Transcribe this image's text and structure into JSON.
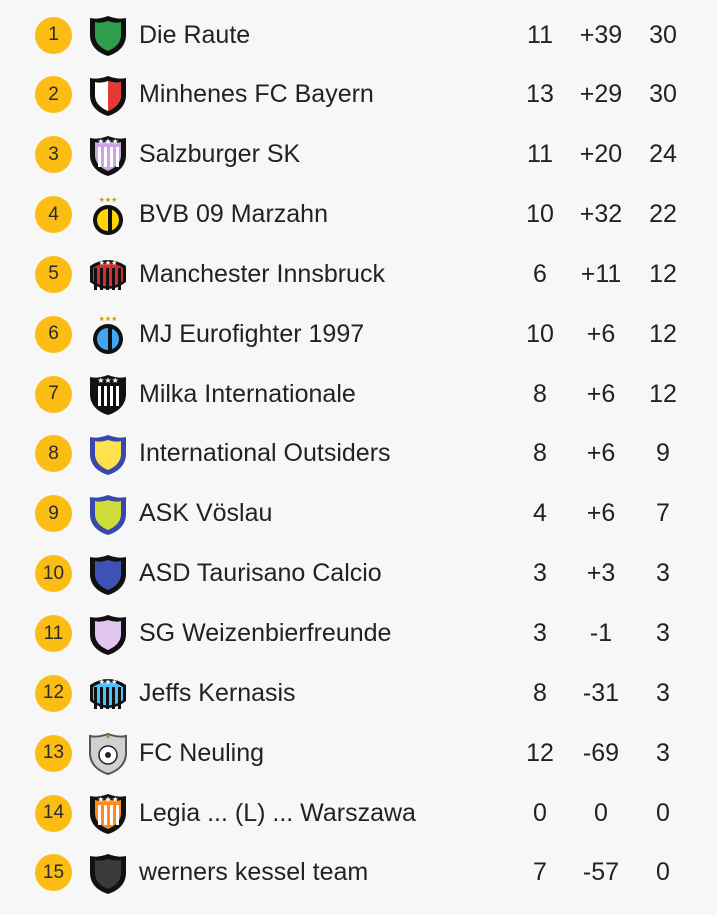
{
  "standings": [
    {
      "rank": "1",
      "crest": "shield-green-white-icon",
      "name": "Die Raute",
      "played": "11",
      "diff": "+39",
      "points": "30",
      "colors": [
        "#2e9e4a",
        "#ffffff"
      ]
    },
    {
      "rank": "2",
      "crest": "shield-red-white-icon",
      "name": "Minhenes FC Bayern",
      "played": "13",
      "diff": "+29",
      "points": "30",
      "colors": [
        "#e53935",
        "#ffffff"
      ]
    },
    {
      "rank": "3",
      "crest": "shield-lilac-stripes-icon",
      "name": "Salzburger SK",
      "played": "11",
      "diff": "+20",
      "points": "24",
      "colors": [
        "#c9a6e0",
        "#ffffff"
      ]
    },
    {
      "rank": "4",
      "crest": "round-yellow-black-icon",
      "name": "BVB 09 Marzahn",
      "played": "10",
      "diff": "+32",
      "points": "22",
      "colors": [
        "#ffd600",
        "#111111"
      ]
    },
    {
      "rank": "5",
      "crest": "badge-red-black-stripes-icon",
      "name": "Manchester Innsbruck",
      "played": "6",
      "diff": "+11",
      "points": "12",
      "colors": [
        "#d32f2f",
        "#111111"
      ]
    },
    {
      "rank": "6",
      "crest": "round-blue-black-icon",
      "name": "MJ Eurofighter 1997",
      "played": "10",
      "diff": "+6",
      "points": "12",
      "colors": [
        "#42a5f5",
        "#111111"
      ]
    },
    {
      "rank": "7",
      "crest": "shield-black-white-stripes-icon",
      "name": "Milka Internationale",
      "played": "8",
      "diff": "+6",
      "points": "12",
      "colors": [
        "#111111",
        "#ffffff"
      ]
    },
    {
      "rank": "8",
      "crest": "shield-yellow-blue-icon",
      "name": "International Outsiders",
      "played": "8",
      "diff": "+6",
      "points": "9",
      "colors": [
        "#ffe14d",
        "#3949ab"
      ]
    },
    {
      "rank": "9",
      "crest": "shield-lime-blue-icon",
      "name": "ASK Vöslau",
      "played": "4",
      "diff": "+6",
      "points": "7",
      "colors": [
        "#cddc39",
        "#3949ab"
      ]
    },
    {
      "rank": "10",
      "crest": "shield-blue-navy-icon",
      "name": "ASD Taurisano Calcio",
      "played": "3",
      "diff": "+3",
      "points": "3",
      "colors": [
        "#3f51b5",
        "#ffffff"
      ]
    },
    {
      "rank": "11",
      "crest": "shield-lilac-black-icon",
      "name": "SG Weizenbierfreunde",
      "played": "3",
      "diff": "-1",
      "points": "3",
      "colors": [
        "#e1c7f0",
        "#111111"
      ]
    },
    {
      "rank": "12",
      "crest": "badge-skyblue-stripes-icon",
      "name": "Jeffs Kernasis",
      "played": "8",
      "diff": "-31",
      "points": "3",
      "colors": [
        "#4fc3f7",
        "#111111"
      ]
    },
    {
      "rank": "13",
      "crest": "crest-football-icon",
      "name": "FC Neuling",
      "played": "12",
      "diff": "-69",
      "points": "3",
      "colors": [
        "#bdbdbd",
        "#111111"
      ]
    },
    {
      "rank": "14",
      "crest": "shield-orange-stripes-icon",
      "name": "Legia ... (L) ... Warszawa",
      "played": "0",
      "diff": "0",
      "points": "0",
      "colors": [
        "#ff8a1f",
        "#ffffff"
      ]
    },
    {
      "rank": "15",
      "crest": "shield-dark-grey-icon",
      "name": "werners kessel team",
      "played": "7",
      "diff": "-57",
      "points": "0",
      "colors": [
        "#3a3a3a",
        "#111111"
      ]
    }
  ]
}
